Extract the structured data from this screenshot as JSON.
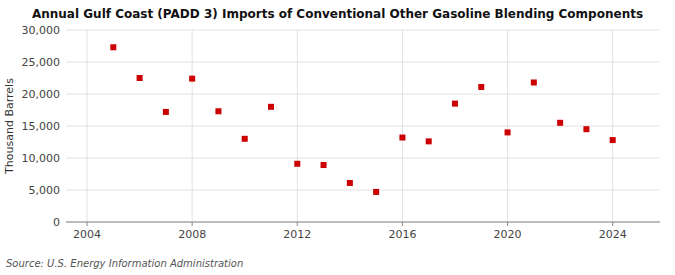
{
  "chart_data": {
    "type": "scatter",
    "title": "Annual Gulf Coast (PADD 3) Imports of Conventional Other Gasoline Blending Components",
    "y_label": "Thousand Barrels",
    "source": "Source: U.S. Energy Information Administration",
    "x": [
      2005,
      2006,
      2007,
      2008,
      2009,
      2010,
      2011,
      2012,
      2013,
      2014,
      2015,
      2016,
      2017,
      2018,
      2019,
      2020,
      2021,
      2022,
      2023,
      2024
    ],
    "values": [
      27300,
      22500,
      17200,
      22400,
      17300,
      13000,
      18000,
      9100,
      8900,
      6100,
      4700,
      13200,
      12600,
      18500,
      21100,
      14000,
      21800,
      15500,
      14500,
      12800
    ],
    "color": "#cc0000",
    "marker": "square",
    "xlim": [
      2003.2,
      2025.8
    ],
    "xticks": [
      2004,
      2008,
      2012,
      2016,
      2020,
      2024
    ],
    "ylim": [
      0,
      30000
    ],
    "yticks": [
      0,
      {
        "value": 5000,
        "label": "5,000"
      },
      {
        "value": 10000,
        "label": "10,000"
      },
      {
        "value": 15000,
        "label": "15,000"
      },
      {
        "value": 20000,
        "label": "20,000"
      },
      {
        "value": 25000,
        "label": "25,000"
      },
      {
        "value": 30000,
        "label": "30,000"
      }
    ],
    "grid": true
  }
}
